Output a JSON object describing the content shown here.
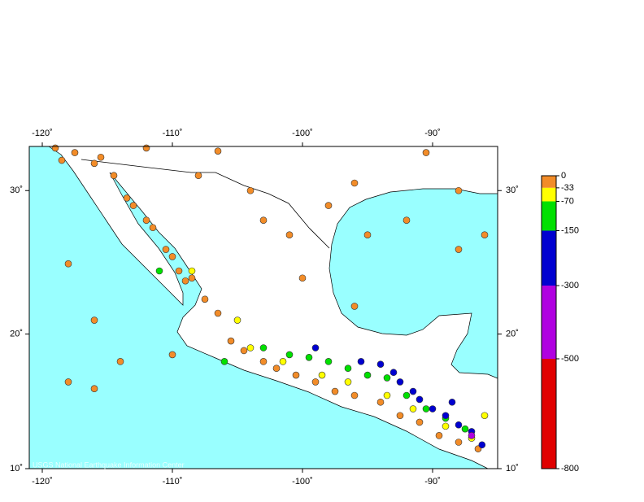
{
  "map": {
    "footer": "USGS National Earthquake Information Center",
    "xlim": [
      -121,
      -85
    ],
    "ylim": [
      10,
      32.9
    ],
    "lon_ticks": [
      {
        "value": -120,
        "label": "-120˚"
      },
      {
        "value": -110,
        "label": "-110˚"
      },
      {
        "value": -100,
        "label": "-100˚"
      },
      {
        "value": -90,
        "label": "-90˚"
      }
    ],
    "lat_ticks": [
      {
        "value": 10,
        "label": "10˚"
      },
      {
        "value": 20,
        "label": "20˚"
      },
      {
        "value": 30,
        "label": "30˚"
      }
    ],
    "depth_scale": {
      "ticks": [
        0,
        -33,
        -70,
        -150,
        -300,
        -500,
        -800
      ],
      "colors": [
        "#f28c28",
        "#ffff00",
        "#00e000",
        "#0000d0",
        "#b000e0",
        "#e00000"
      ]
    },
    "events": [
      [
        -117.5,
        32.5,
        -10
      ],
      [
        -116,
        31.8,
        -10
      ],
      [
        -115.5,
        32.2,
        -8
      ],
      [
        -114.5,
        31,
        -10
      ],
      [
        -113.5,
        29.5,
        -10
      ],
      [
        -113,
        29,
        -10
      ],
      [
        -112,
        28,
        -10
      ],
      [
        -111.5,
        27.5,
        -10
      ],
      [
        -110.5,
        26,
        -10
      ],
      [
        -110,
        25.5,
        -10
      ],
      [
        -109.5,
        24.5,
        -10
      ],
      [
        -109,
        23.8,
        -10
      ],
      [
        -108.5,
        24,
        -10
      ],
      [
        -107.5,
        22.5,
        -10
      ],
      [
        -106.5,
        21.5,
        -10
      ],
      [
        -119,
        32.8,
        -10
      ],
      [
        -118.5,
        32,
        -10
      ],
      [
        -112,
        32.8,
        -10
      ],
      [
        -108,
        31,
        -10
      ],
      [
        -104,
        30,
        -10
      ],
      [
        -103,
        28,
        -10
      ],
      [
        -101,
        27,
        -10
      ],
      [
        -98,
        29,
        -10
      ],
      [
        -96,
        30.5,
        -10
      ],
      [
        -95,
        27,
        -10
      ],
      [
        -100,
        24,
        -10
      ],
      [
        -96,
        22,
        -10
      ],
      [
        -92,
        28,
        -10
      ],
      [
        -88,
        26,
        -10
      ],
      [
        -118,
        25,
        -10
      ],
      [
        -116,
        21,
        -10
      ],
      [
        -118,
        16.5,
        -10
      ],
      [
        -116,
        16,
        -10
      ],
      [
        -110,
        18.5,
        -10
      ],
      [
        -114,
        18,
        -10
      ],
      [
        -106.5,
        32.6,
        -10
      ],
      [
        -90.5,
        32.5,
        -10
      ],
      [
        -88,
        30,
        -10
      ],
      [
        -86,
        27,
        -10
      ],
      [
        -105.5,
        19.5,
        -10
      ],
      [
        -104.5,
        18.8,
        -10
      ],
      [
        -103,
        18,
        -15
      ],
      [
        -102,
        17.5,
        -20
      ],
      [
        -100.5,
        17,
        -15
      ],
      [
        -99,
        16.5,
        -20
      ],
      [
        -97.5,
        15.8,
        -15
      ],
      [
        -96,
        15.5,
        -10
      ],
      [
        -94,
        15,
        -20
      ],
      [
        -92.5,
        14,
        -15
      ],
      [
        -91,
        13.5,
        -20
      ],
      [
        -89.5,
        12.5,
        -15
      ],
      [
        -88,
        12,
        -20
      ],
      [
        -86.5,
        11.5,
        -15
      ],
      [
        -104,
        19,
        -40
      ],
      [
        -101.5,
        18,
        -45
      ],
      [
        -98.5,
        17,
        -50
      ],
      [
        -96.5,
        16.5,
        -45
      ],
      [
        -93.5,
        15.5,
        -50
      ],
      [
        -91.5,
        14.5,
        -55
      ],
      [
        -89,
        13.2,
        -50
      ],
      [
        -87,
        12.3,
        -60
      ],
      [
        -108.5,
        24.5,
        -40
      ],
      [
        -105,
        21,
        -40
      ],
      [
        -86,
        14,
        -45
      ],
      [
        -103,
        19,
        -80
      ],
      [
        -101,
        18.5,
        -90
      ],
      [
        -99.5,
        18.3,
        -100
      ],
      [
        -98,
        18,
        -90
      ],
      [
        -96.5,
        17.5,
        -100
      ],
      [
        -95,
        17,
        -110
      ],
      [
        -93.5,
        16.8,
        -120
      ],
      [
        -92,
        15.5,
        -100
      ],
      [
        -90.5,
        14.5,
        -100
      ],
      [
        -89,
        13.8,
        -110
      ],
      [
        -87.5,
        13,
        -90
      ],
      [
        -111,
        24.5,
        -80
      ],
      [
        -106,
        18,
        -90
      ],
      [
        -94,
        17.8,
        -170
      ],
      [
        -93,
        17.2,
        -180
      ],
      [
        -92.5,
        16.5,
        -190
      ],
      [
        -91.5,
        15.8,
        -200
      ],
      [
        -91,
        15.2,
        -180
      ],
      [
        -90,
        14.5,
        -200
      ],
      [
        -89,
        14,
        -210
      ],
      [
        -88,
        13.3,
        -190
      ],
      [
        -87,
        12.8,
        -200
      ],
      [
        -86.2,
        11.8,
        -220
      ],
      [
        -95.5,
        18,
        -160
      ],
      [
        -99,
        19,
        -170
      ],
      [
        -88.5,
        15,
        -160
      ],
      [
        -87,
        12.5,
        -310
      ]
    ]
  }
}
